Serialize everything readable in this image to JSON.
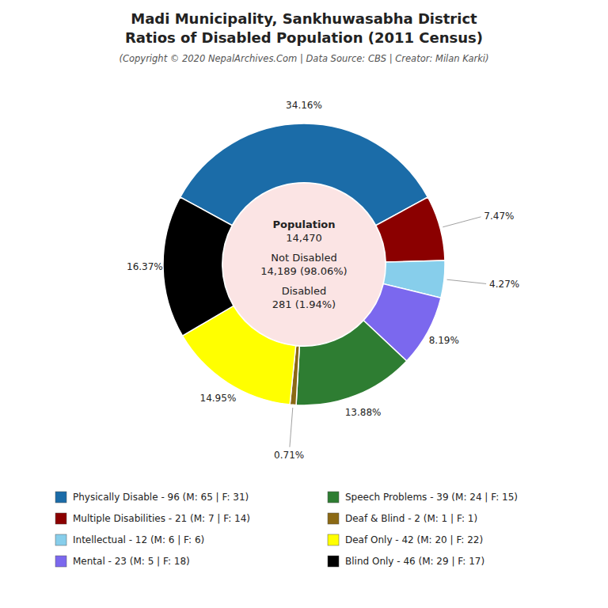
{
  "chart_data": {
    "type": "donut",
    "title": [
      "Madi Municipality, Sankhuwasabha District",
      "Ratios of Disabled Population (2011 Census)"
    ],
    "subtitle": "(Copyright © 2020 NepalArchives.Com | Data Source: CBS | Creator: Milan Karki)",
    "categories": [
      "Physically Disable - 96 (M: 65 | F: 31)",
      "Multiple Disabilities - 21 (M: 7 | F: 14)",
      "Intellectual - 12 (M: 6 | F: 6)",
      "Mental - 23 (M: 5 | F: 18)",
      "Speech Problems - 39 (M: 24 | F: 15)",
      "Deaf & Blind - 2 (M: 1 | F: 1)",
      "Deaf Only - 42 (M: 20 | F: 22)",
      "Blind Only - 46 (M: 29 | F: 17)"
    ],
    "values": [
      34.16,
      7.47,
      4.27,
      8.19,
      13.88,
      0.71,
      14.95,
      16.37
    ],
    "value_labels": [
      "34.16%",
      "7.47%",
      "4.27%",
      "8.19%",
      "13.88%",
      "0.71%",
      "14.95%",
      "16.37%"
    ],
    "colors": [
      "#1b6ca8",
      "#8b0000",
      "#87ceeb",
      "#7b68ee",
      "#2e7d32",
      "#8b6914",
      "#ffff00",
      "#000000"
    ],
    "data_labels": true,
    "legend": "bottom",
    "annotations": [
      "Population",
      "14,470",
      "Not Disabled",
      "14,189 (98.06%)",
      "Disabled",
      "281 (1.94%)"
    ]
  }
}
